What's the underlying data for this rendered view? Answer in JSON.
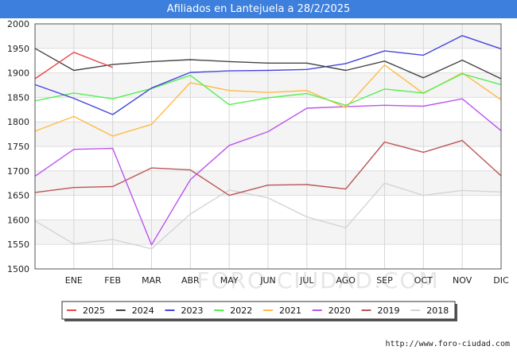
{
  "title": "Afiliados en Lantejuela a 28/2/2025",
  "watermark": "FORO-CIUDAD.COM",
  "source_url": "http://www.foro-ciudad.com",
  "chart_data": {
    "type": "line",
    "title": "Afiliados en Lantejuela a 28/2/2025",
    "xlabel": "",
    "ylabel": "",
    "categories": [
      "",
      "ENE",
      "FEB",
      "MAR",
      "ABR",
      "MAY",
      "JUN",
      "JUL",
      "AGO",
      "SEP",
      "OCT",
      "NOV",
      "DIC"
    ],
    "ylim": [
      1500,
      2000
    ],
    "yticks": [
      1500,
      1550,
      1600,
      1650,
      1700,
      1750,
      1800,
      1850,
      1900,
      1950,
      2000
    ],
    "grid": true,
    "legend_position": "bottom",
    "series": [
      {
        "name": "2025",
        "color": "#e8474a",
        "values": [
          1888,
          1942,
          1911,
          null,
          null,
          null,
          null,
          null,
          null,
          null,
          null,
          null,
          null
        ]
      },
      {
        "name": "2024",
        "color": "#444444",
        "values": [
          1950,
          1905,
          1917,
          1923,
          1927,
          1923,
          1920,
          1920,
          1905,
          1924,
          1890,
          1926,
          1888
        ]
      },
      {
        "name": "2023",
        "color": "#4444dd",
        "values": [
          1876,
          1848,
          1815,
          1869,
          1901,
          1904,
          1905,
          1907,
          1919,
          1945,
          1936,
          1976,
          1949
        ]
      },
      {
        "name": "2022",
        "color": "#55ee55",
        "values": [
          1843,
          1859,
          1847,
          1868,
          1895,
          1835,
          1849,
          1858,
          1834,
          1867,
          1859,
          1898,
          1876
        ]
      },
      {
        "name": "2021",
        "color": "#ffbb44",
        "values": [
          1781,
          1811,
          1771,
          1795,
          1880,
          1864,
          1860,
          1864,
          1829,
          1916,
          1858,
          1900,
          1845
        ]
      },
      {
        "name": "2020",
        "color": "#bb55ee",
        "values": [
          1689,
          1744,
          1746,
          1549,
          1682,
          1752,
          1780,
          1828,
          1831,
          1834,
          1832,
          1847,
          1782
        ]
      },
      {
        "name": "2019",
        "color": "#bb5555",
        "values": [
          1656,
          1666,
          1668,
          1706,
          1702,
          1650,
          1671,
          1672,
          1663,
          1759,
          1738,
          1762,
          1690
        ]
      },
      {
        "name": "2018",
        "color": "#d4d4d4",
        "values": [
          1598,
          1551,
          1560,
          1541,
          1612,
          1661,
          1645,
          1606,
          1584,
          1675,
          1650,
          1660,
          1657
        ]
      }
    ]
  }
}
